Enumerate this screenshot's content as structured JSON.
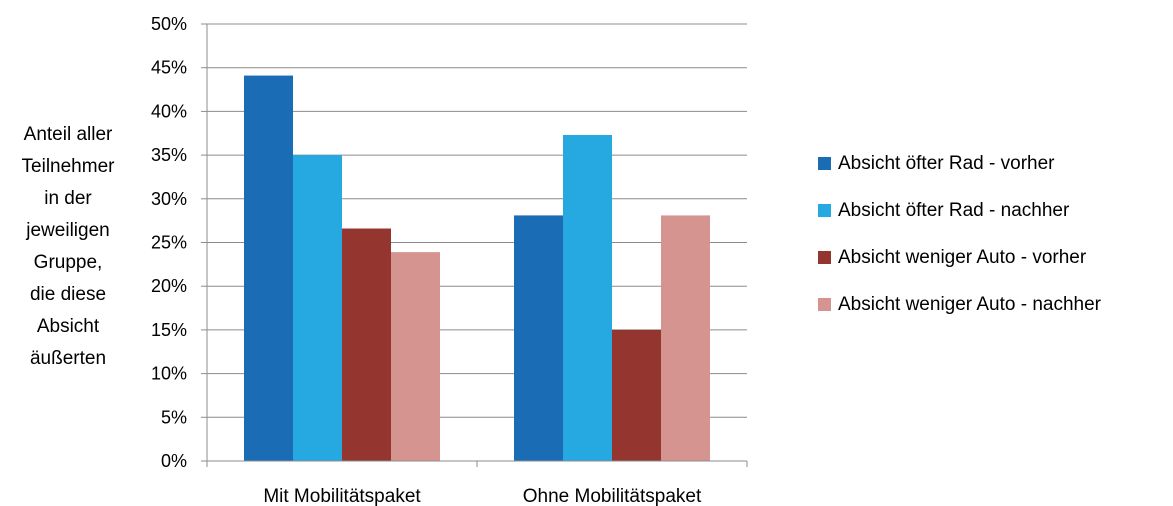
{
  "chart_data": {
    "type": "bar",
    "title": "",
    "xlabel": "",
    "ylabel_lines": [
      "Anteil aller",
      "Teilnehmer",
      "in der",
      "jeweiligen",
      "Gruppe,",
      "die diese",
      "Absicht",
      "äußerten"
    ],
    "categories": [
      "Mit Mobilitätspaket",
      "Ohne Mobilitätspaket"
    ],
    "yticks": [
      "0%",
      "5%",
      "10%",
      "15%",
      "20%",
      "25%",
      "30%",
      "35%",
      "40%",
      "45%",
      "50%"
    ],
    "ylim": [
      0,
      50
    ],
    "grid": true,
    "legend_position": "right",
    "series": [
      {
        "name": "Absicht öfter Rad - vorher",
        "color": "#1a6db5",
        "values": [
          44.1,
          28.1
        ]
      },
      {
        "name": "Absicht öfter Rad - nachher",
        "color": "#26a9e0",
        "values": [
          35.0,
          37.3
        ]
      },
      {
        "name": "Absicht weniger Auto - vorher",
        "color": "#943530",
        "values": [
          26.6,
          15.0
        ]
      },
      {
        "name": "Absicht weniger Auto - nachher",
        "color": "#d69491",
        "values": [
          23.9,
          28.1
        ]
      }
    ]
  }
}
